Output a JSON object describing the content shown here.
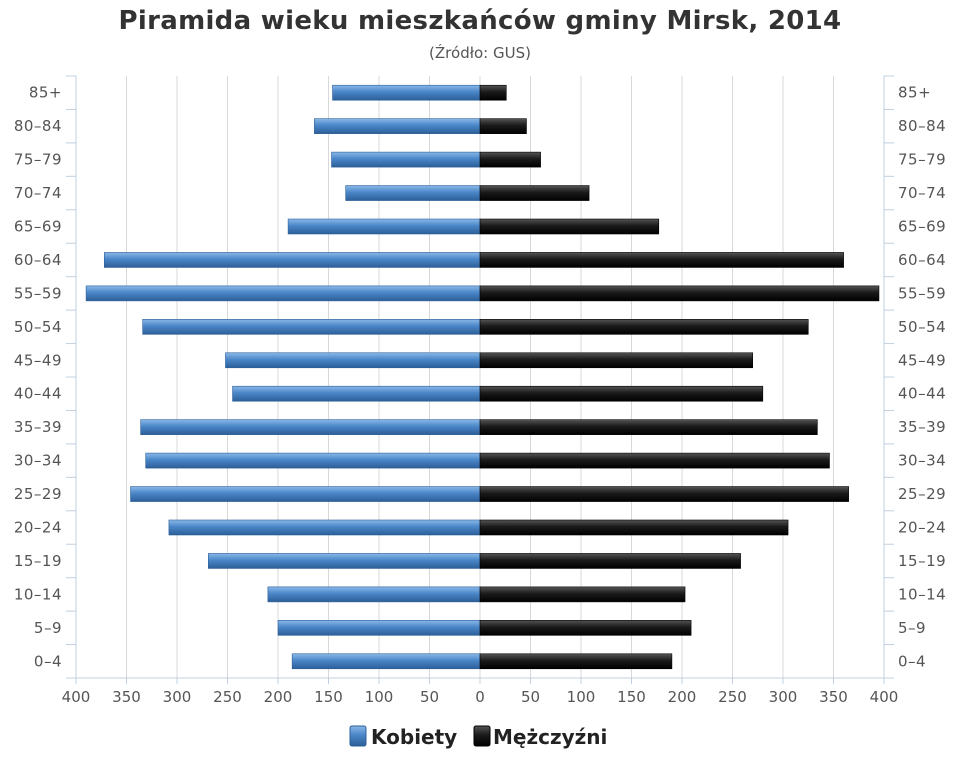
{
  "title": "Piramida wieku mieszkańców gminy Mirsk, 2014",
  "subtitle": "(Źródło: GUS)",
  "chart_data": {
    "type": "bar",
    "orientation": "horizontal-population-pyramid",
    "categories": [
      "85+",
      "80-84",
      "75-79",
      "70-74",
      "65-69",
      "60-64",
      "55-59",
      "50-54",
      "45-49",
      "40-44",
      "35-39",
      "30-34",
      "25-29",
      "20-24",
      "15-19",
      "10-14",
      "5-9",
      "0-4"
    ],
    "category_labels": [
      "85+",
      "80–84",
      "75–79",
      "70–74",
      "65–69",
      "60–64",
      "55–59",
      "50–54",
      "45–49",
      "40–44",
      "35–39",
      "30–34",
      "25–29",
      "20–24",
      "15–19",
      "10–14",
      "5–9",
      "0–4"
    ],
    "series": [
      {
        "name": "Kobiety",
        "side": "left",
        "color": "#4a86c8",
        "values": [
          146,
          164,
          147,
          133,
          190,
          372,
          390,
          334,
          252,
          245,
          336,
          331,
          346,
          308,
          269,
          210,
          200,
          186
        ]
      },
      {
        "name": "Mężczyźni",
        "side": "right",
        "color": "#1a1a1a",
        "values": [
          26,
          46,
          60,
          108,
          177,
          360,
          395,
          325,
          270,
          280,
          334,
          346,
          365,
          305,
          258,
          203,
          209,
          190
        ]
      }
    ],
    "x_ticks": [
      "400",
      "350",
      "300",
      "250",
      "200",
      "150",
      "100",
      "50",
      "0",
      "50",
      "100",
      "150",
      "200",
      "250",
      "300",
      "350",
      "400"
    ],
    "xlim": [
      -400,
      400
    ],
    "grid": true,
    "legend_position": "bottom-center"
  },
  "legend": {
    "women_label": "Kobiety",
    "men_label": "Mężczyźni"
  }
}
